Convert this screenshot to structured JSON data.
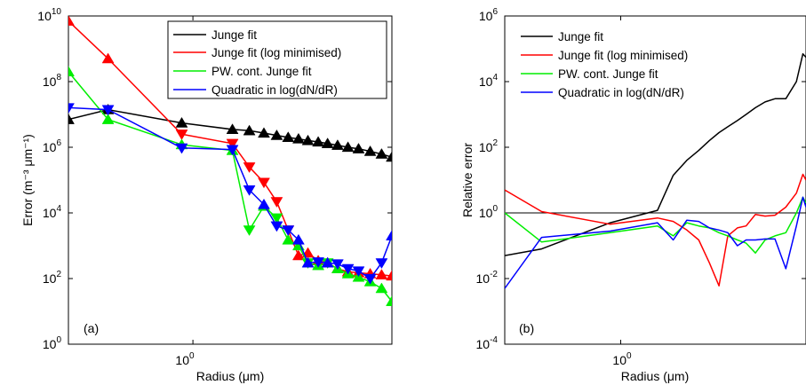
{
  "series_styles": [
    {
      "name": "Junge fit",
      "color": "#000000"
    },
    {
      "name": "Junge fit (log minimised)",
      "color": "#ff0000"
    },
    {
      "name": "PW. cont. Junge fit",
      "color": "#00ee00"
    },
    {
      "name": "Quadratic in log(dN/dR)",
      "color": "#0000ff"
    }
  ],
  "x_tick": {
    "base": "10",
    "exp": "0"
  },
  "chart_data": [
    {
      "type": "line",
      "panel_label": "(a)",
      "xlabel": "Radius (μm)",
      "ylabel": "Error (m⁻³ μm⁻¹)",
      "xscale": "log",
      "yscale": "log",
      "xlim": [
        0.31,
        6.5
      ],
      "ylim": [
        1,
        10000000000.0
      ],
      "y_ticks": [
        {
          "base": "10",
          "exp": "0",
          "value": 1
        },
        {
          "base": "10",
          "exp": "2",
          "value": 100
        },
        {
          "base": "10",
          "exp": "4",
          "value": 10000
        },
        {
          "base": "10",
          "exp": "6",
          "value": 1000000
        },
        {
          "base": "10",
          "exp": "8",
          "value": 100000000
        },
        {
          "base": "10",
          "exp": "10",
          "value": 10000000000
        }
      ],
      "legend_position": "top-right",
      "series": [
        {
          "name": "Junge fit",
          "marker": "triangle-up",
          "x": [
            0.31,
            0.45,
            0.9,
            1.45,
            1.7,
            1.95,
            2.2,
            2.45,
            2.7,
            2.95,
            3.25,
            3.55,
            3.9,
            4.3,
            4.75,
            5.3,
            5.9,
            6.5
          ],
          "y": [
            7000000.0,
            14000000.0,
            5500000.0,
            3500000.0,
            3200000.0,
            2700000.0,
            2300000.0,
            2000000.0,
            1800000.0,
            1600000.0,
            1450000.0,
            1300000.0,
            1150000.0,
            1000000.0,
            900000.0,
            750000.0,
            620000.0,
            500000.0
          ]
        },
        {
          "name": "Junge fit (log minimised)",
          "x": [
            0.31,
            0.45,
            0.9,
            1.45,
            1.7,
            1.95,
            2.2,
            2.45,
            2.7,
            2.95,
            3.25,
            3.55,
            3.9,
            4.3,
            4.75,
            5.3,
            5.9,
            6.5
          ],
          "y": [
            7000000000.0,
            500000000.0,
            2500000.0,
            1300000.0,
            250000.0,
            85000.0,
            22000.0,
            3000.0,
            500,
            600,
            350,
            300,
            200,
            160,
            150,
            140,
            130,
            120
          ],
          "marker": [
            {
              "x": 0.31,
              "shape": "triangle-up"
            },
            {
              "x": 0.45,
              "shape": "triangle-up"
            },
            {
              "x": 0.9,
              "shape": "triangle-down"
            },
            {
              "x": 1.45,
              "shape": "triangle-down"
            },
            {
              "x": 1.7,
              "shape": "triangle-down"
            },
            {
              "x": 1.95,
              "shape": "triangle-down"
            },
            {
              "x": 2.2,
              "shape": "triangle-down"
            },
            {
              "x": 2.45,
              "shape": "triangle-down"
            },
            {
              "x": 2.7,
              "shape": "triangle-up"
            },
            {
              "x": 2.95,
              "shape": "triangle-up"
            },
            {
              "x": 3.25,
              "shape": "triangle-up"
            },
            {
              "x": 3.55,
              "shape": "triangle-up"
            },
            {
              "x": 3.9,
              "shape": "triangle-up"
            },
            {
              "x": 4.3,
              "shape": "triangle-up"
            },
            {
              "x": 4.75,
              "shape": "triangle-up"
            },
            {
              "x": 5.3,
              "shape": "triangle-up"
            },
            {
              "x": 5.9,
              "shape": "triangle-up"
            },
            {
              "x": 6.5,
              "shape": "triangle-up"
            }
          ]
        },
        {
          "name": "PW. cont. Junge fit",
          "x": [
            0.31,
            0.45,
            0.9,
            1.45,
            1.7,
            1.95,
            2.2,
            2.45,
            2.7,
            2.95,
            3.25,
            3.55,
            3.9,
            4.3,
            4.75,
            5.3,
            5.9,
            6.5
          ],
          "y": [
            200000000.0,
            7000000.0,
            1200000.0,
            800000.0,
            3000.0,
            16000.0,
            7000.0,
            1500.0,
            1000.0,
            300,
            250,
            300,
            200,
            140,
            110,
            80,
            50,
            20
          ],
          "marker": [
            {
              "x": 0.31,
              "shape": "triangle-up"
            },
            {
              "x": 0.45,
              "shape": "triangle-up"
            },
            {
              "x": 0.9,
              "shape": "triangle-up"
            },
            {
              "x": 1.45,
              "shape": "triangle-up"
            },
            {
              "x": 1.7,
              "shape": "triangle-down"
            },
            {
              "x": 1.95,
              "shape": "triangle-up"
            },
            {
              "x": 2.2,
              "shape": "triangle-down"
            },
            {
              "x": 2.45,
              "shape": "triangle-up"
            },
            {
              "x": 2.7,
              "shape": "triangle-up"
            },
            {
              "x": 2.95,
              "shape": "triangle-down"
            },
            {
              "x": 3.25,
              "shape": "triangle-up"
            },
            {
              "x": 3.55,
              "shape": "triangle-down"
            },
            {
              "x": 3.9,
              "shape": "triangle-up"
            },
            {
              "x": 4.3,
              "shape": "triangle-up"
            },
            {
              "x": 4.75,
              "shape": "triangle-up"
            },
            {
              "x": 5.3,
              "shape": "triangle-up"
            },
            {
              "x": 5.9,
              "shape": "triangle-up"
            },
            {
              "x": 6.5,
              "shape": "triangle-up"
            }
          ]
        },
        {
          "name": "Quadratic in log(dN/dR)",
          "x": [
            0.31,
            0.45,
            0.9,
            1.45,
            1.7,
            1.95,
            2.2,
            2.45,
            2.7,
            2.95,
            3.25,
            3.55,
            3.9,
            4.3,
            4.75,
            5.3,
            5.9,
            6.5
          ],
          "y": [
            16000000.0,
            14000000.0,
            950000.0,
            850000.0,
            50000.0,
            18000.0,
            4000.0,
            3000.0,
            1500.0,
            300,
            320,
            300,
            280,
            200,
            170,
            100,
            300,
            2000.0
          ],
          "marker": [
            {
              "x": 0.31,
              "shape": "triangle-down"
            },
            {
              "x": 0.45,
              "shape": "triangle-down"
            },
            {
              "x": 0.9,
              "shape": "triangle-down"
            },
            {
              "x": 1.45,
              "shape": "triangle-down"
            },
            {
              "x": 1.7,
              "shape": "triangle-down"
            },
            {
              "x": 1.95,
              "shape": "triangle-up"
            },
            {
              "x": 2.2,
              "shape": "triangle-down"
            },
            {
              "x": 2.45,
              "shape": "triangle-down"
            },
            {
              "x": 2.7,
              "shape": "triangle-up"
            },
            {
              "x": 2.95,
              "shape": "triangle-up"
            },
            {
              "x": 3.25,
              "shape": "triangle-down"
            },
            {
              "x": 3.55,
              "shape": "triangle-up"
            },
            {
              "x": 3.9,
              "shape": "triangle-down"
            },
            {
              "x": 4.3,
              "shape": "triangle-down"
            },
            {
              "x": 4.75,
              "shape": "triangle-down"
            },
            {
              "x": 5.3,
              "shape": "triangle-down"
            },
            {
              "x": 5.9,
              "shape": "triangle-down"
            },
            {
              "x": 6.5,
              "shape": "triangle-up"
            }
          ]
        }
      ]
    },
    {
      "type": "line",
      "panel_label": "(b)",
      "xlabel": "Radius (μm)",
      "ylabel": "Relative error",
      "xscale": "log",
      "yscale": "log",
      "xlim": [
        0.31,
        6.5
      ],
      "ylim": [
        0.0001,
        1000000
      ],
      "y_ticks": [
        {
          "base": "10",
          "exp": "-4",
          "value": 0.0001
        },
        {
          "base": "10",
          "exp": "-2",
          "value": 0.01
        },
        {
          "base": "10",
          "exp": "0",
          "value": 1
        },
        {
          "base": "10",
          "exp": "2",
          "value": 100
        },
        {
          "base": "10",
          "exp": "4",
          "value": 10000
        },
        {
          "base": "10",
          "exp": "6",
          "value": 1000000
        }
      ],
      "reference_line_y": 1,
      "legend_position": "top-right",
      "series": [
        {
          "name": "Junge fit",
          "x": [
            0.31,
            0.45,
            0.9,
            1.45,
            1.7,
            1.95,
            2.2,
            2.45,
            2.7,
            2.95,
            3.25,
            3.55,
            3.9,
            4.3,
            4.75,
            5.3,
            5.9,
            6.3,
            6.5
          ],
          "y": [
            0.05,
            0.08,
            0.5,
            1.2,
            14,
            40,
            80,
            160,
            280,
            420,
            650,
            1000,
            1600,
            2400,
            3000,
            3000,
            10000,
            70000,
            55000
          ]
        },
        {
          "name": "Junge fit (log minimised)",
          "x": [
            0.31,
            0.45,
            0.9,
            1.45,
            1.7,
            1.95,
            2.2,
            2.45,
            2.7,
            2.95,
            3.25,
            3.55,
            3.9,
            4.3,
            4.75,
            5.3,
            5.9,
            6.3,
            6.5
          ],
          "y": [
            5,
            1.1,
            0.45,
            0.7,
            0.55,
            0.3,
            0.15,
            0.03,
            0.006,
            0.2,
            0.35,
            0.4,
            0.9,
            0.8,
            0.85,
            1.5,
            4,
            15,
            10
          ]
        },
        {
          "name": "PW. cont. Junge fit",
          "x": [
            0.31,
            0.45,
            0.9,
            1.45,
            1.7,
            1.95,
            2.2,
            2.45,
            2.7,
            2.95,
            3.25,
            3.55,
            3.9,
            4.3,
            4.75,
            5.3,
            5.9,
            6.3,
            6.5
          ],
          "y": [
            1,
            0.13,
            0.25,
            0.4,
            0.2,
            0.5,
            0.4,
            0.35,
            0.25,
            0.2,
            0.15,
            0.12,
            0.06,
            0.15,
            0.2,
            0.25,
            1,
            3,
            2
          ]
        },
        {
          "name": "Quadratic in log(dN/dR)",
          "x": [
            0.31,
            0.45,
            0.9,
            1.45,
            1.7,
            1.95,
            2.2,
            2.45,
            2.7,
            2.95,
            3.25,
            3.55,
            3.9,
            4.3,
            4.75,
            5.3,
            5.9,
            6.3,
            6.5
          ],
          "y": [
            0.005,
            0.18,
            0.28,
            0.5,
            0.15,
            0.6,
            0.55,
            0.35,
            0.3,
            0.25,
            0.1,
            0.15,
            0.15,
            0.16,
            0.16,
            0.02,
            0.4,
            3,
            1.5
          ]
        }
      ]
    }
  ]
}
